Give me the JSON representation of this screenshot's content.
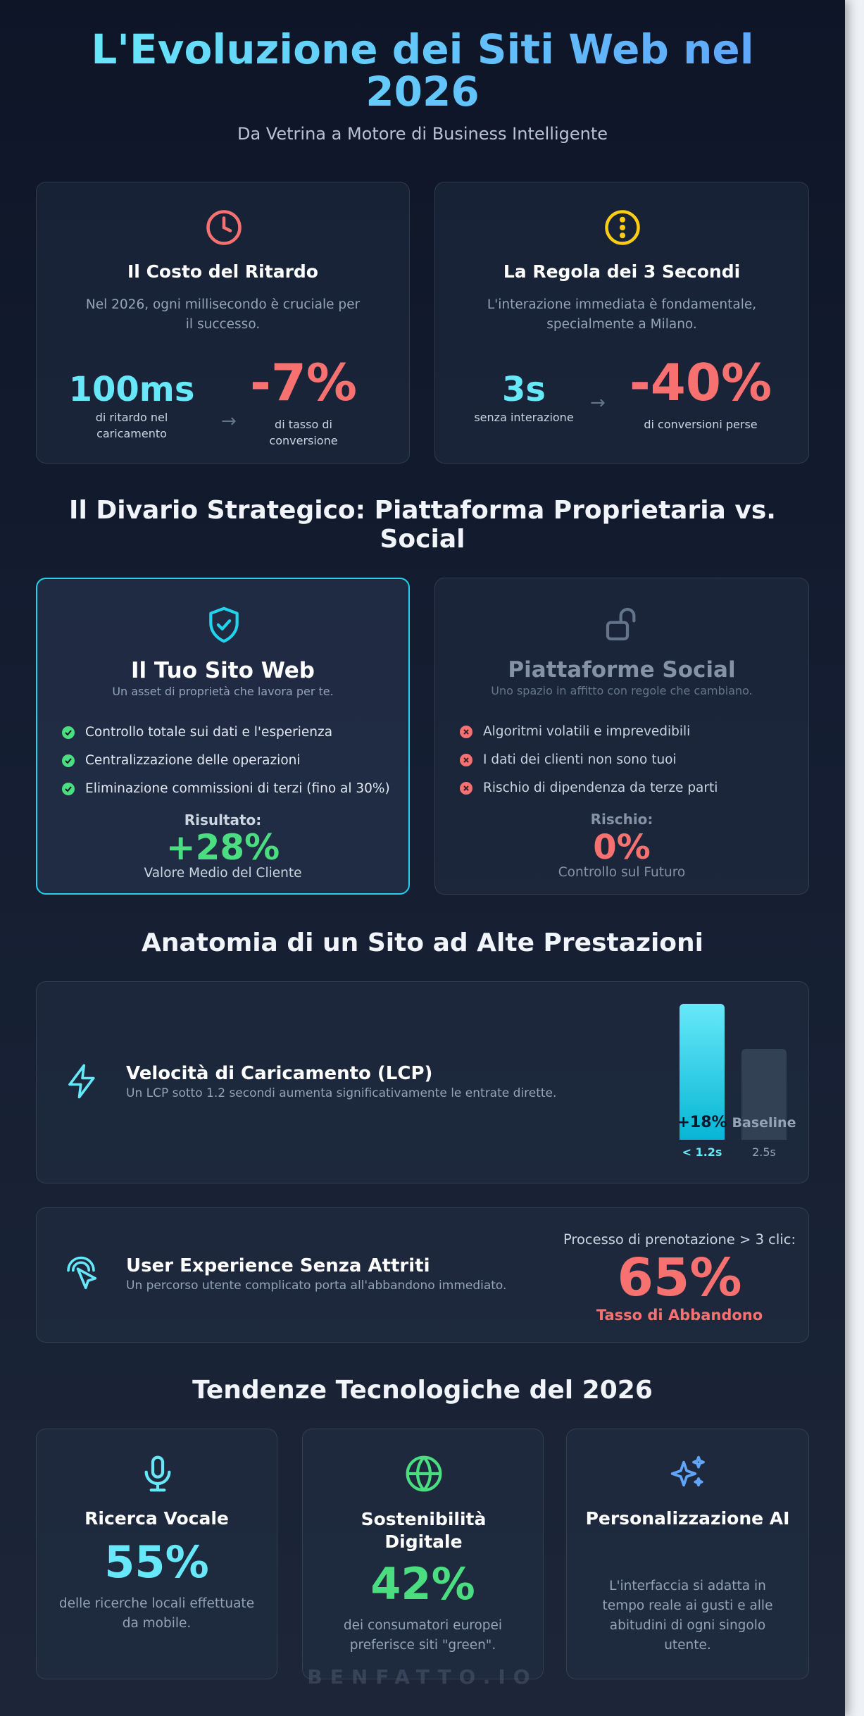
{
  "header": {
    "title": "L'Evoluzione dei Siti Web nel 2026",
    "subtitle": "Da Vetrina a Motore di Business Intelligente"
  },
  "stats": [
    {
      "title": "Il Costo del Ritardo",
      "text": "Nel 2026, ogni millisecondo è cruciale per il successo.",
      "metric": "100ms",
      "metric_label": "di ritardo nel caricamento",
      "result": "-7%",
      "result_label": "di tasso di conversione"
    },
    {
      "title": "La Regola dei 3 Secondi",
      "text": "L'interazione immediata è fondamentale, specialmente a Milano.",
      "metric": "3s",
      "metric_label": "senza interazione",
      "result": "-40%",
      "result_label": "di conversioni perse"
    }
  ],
  "comparison": {
    "heading": "Il Divario Strategico: Piattaforma Proprietaria vs. Social",
    "cards": [
      {
        "title": "Il Tuo Sito Web",
        "subtitle": "Un asset di proprietà che lavora per te.",
        "items": [
          "Controllo totale sui dati e l'esperienza",
          "Centralizzazione delle operazioni",
          "Eliminazione commissioni di terzi (fino al 30%)"
        ],
        "result_label": "Risultato:",
        "result_value": "+28%",
        "result_caption": "Valore Medio del Cliente"
      },
      {
        "title": "Piattaforme Social",
        "subtitle": "Uno spazio in affitto con regole che cambiano.",
        "items": [
          "Algoritmi volatili e imprevedibili",
          "I dati dei clienti non sono tuoi",
          "Rischio di dipendenza da terze parti"
        ],
        "result_label": "Rischio:",
        "result_value": "0%",
        "result_caption": "Controllo sul Futuro"
      }
    ]
  },
  "anatomy": {
    "heading": "Anatomia di un Sito ad Alte Prestazioni",
    "speed": {
      "title": "Velocità di Caricamento (LCP)",
      "text": "Un LCP sotto 1.2 secondi aumenta significativamente le entrate dirette.",
      "bars": [
        {
          "label": "+18%",
          "axis": "< 1.2s"
        },
        {
          "label": "Baseline",
          "axis": "2.5s"
        }
      ]
    },
    "ux": {
      "title": "User Experience Senza Attriti",
      "text": "Un percorso utente complicato porta all'abbandono immediato.",
      "note": "Processo di prenotazione > 3 clic:",
      "value": "65%",
      "caption": "Tasso di Abbandono"
    }
  },
  "trends": {
    "heading": "Tendenze Tecnologiche del 2026",
    "cards": [
      {
        "title": "Ricerca Vocale",
        "value": "55%",
        "text": "delle ricerche locali effettuate da mobile."
      },
      {
        "title": "Sostenibilità Digitale",
        "value": "42%",
        "text": "dei consumatori europei preferisce siti \"green\"."
      },
      {
        "title": "Personalizzazione AI",
        "text": "L'interfaccia si adatta in tempo reale ai gusti e alle abitudini di ogni singolo utente."
      }
    ]
  },
  "footer": {
    "watermark": "BENFATTO.IO"
  }
}
